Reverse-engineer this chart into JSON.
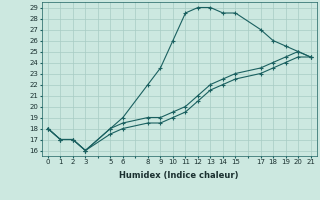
{
  "title": "",
  "xlabel": "Humidex (Indice chaleur)",
  "ylabel": "",
  "xlim": [
    -0.5,
    21.5
  ],
  "ylim": [
    15.5,
    29.5
  ],
  "xticks": [
    0,
    1,
    2,
    3,
    5,
    6,
    8,
    9,
    10,
    11,
    12,
    13,
    14,
    15,
    17,
    18,
    19,
    20,
    21
  ],
  "yticks": [
    16,
    17,
    18,
    19,
    20,
    21,
    22,
    23,
    24,
    25,
    26,
    27,
    28,
    29
  ],
  "bg_color": "#cce8e0",
  "grid_color": "#a8ccc4",
  "line_color": "#1a6060",
  "lines": [
    {
      "x": [
        0,
        1,
        2,
        3,
        5,
        6,
        8,
        9,
        10,
        11,
        12,
        13,
        14,
        15,
        17,
        18,
        19,
        20,
        21
      ],
      "y": [
        18,
        17,
        17,
        16,
        18,
        19,
        22,
        23.5,
        26,
        28.5,
        29,
        29,
        28.5,
        28.5,
        27,
        26,
        25.5,
        25,
        24.5
      ]
    },
    {
      "x": [
        0,
        1,
        2,
        3,
        5,
        6,
        8,
        9,
        10,
        11,
        12,
        13,
        14,
        15,
        17,
        18,
        19,
        20,
        21
      ],
      "y": [
        18,
        17,
        17,
        16,
        18,
        18.5,
        19,
        19,
        19.5,
        20,
        21,
        22,
        22.5,
        23,
        23.5,
        24,
        24.5,
        25,
        24.5
      ]
    },
    {
      "x": [
        0,
        1,
        2,
        3,
        5,
        6,
        8,
        9,
        10,
        11,
        12,
        13,
        14,
        15,
        17,
        18,
        19,
        20,
        21
      ],
      "y": [
        18,
        17,
        17,
        16,
        17.5,
        18,
        18.5,
        18.5,
        19,
        19.5,
        20.5,
        21.5,
        22,
        22.5,
        23,
        23.5,
        24,
        24.5,
        24.5
      ]
    }
  ]
}
